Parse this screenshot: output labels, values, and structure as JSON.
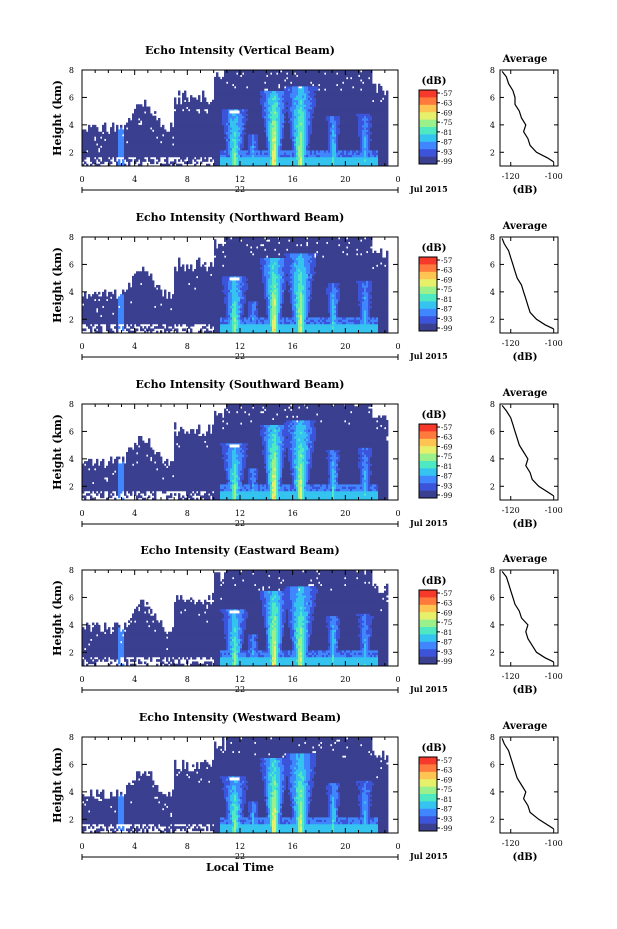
{
  "colors": {
    "colorbar": [
      "#3a3f8f",
      "#3b54d9",
      "#3f86ff",
      "#35c3ef",
      "#4ee8c2",
      "#9af08a",
      "#e6f06a",
      "#ffc451",
      "#ff7a3c",
      "#f7392c"
    ],
    "background_echo": "#3a3f8f",
    "axis": "#000000"
  },
  "chart_data": [
    {
      "type": "heatmap",
      "title": "Echo Intensity (Vertical Beam)",
      "ylabel": "Height (km)",
      "xlabel": "",
      "x_ticks": [
        "0",
        "4",
        "8",
        "12",
        "16",
        "20",
        "0"
      ],
      "xlim": [
        0,
        24
      ],
      "y_ticks": [
        "2",
        "4",
        "6",
        "8"
      ],
      "ylim": [
        1,
        8
      ],
      "date_day": "22",
      "date_label": "Jul 2015",
      "colorbar": {
        "unit": "(dB)",
        "ticks": [
          "-57",
          "-63",
          "-69",
          "-75",
          "-81",
          "-87",
          "-93",
          "-99"
        ]
      },
      "average": {
        "title": "Average",
        "xlabel": "(dB)",
        "x_ticks": [
          "-120",
          "-100"
        ],
        "xlim": [
          -125,
          -98
        ],
        "y_ticks": [
          "2",
          "4",
          "6",
          "8"
        ],
        "heights": [
          1.3,
          1.6,
          2.0,
          2.5,
          3.0,
          3.5,
          4.0,
          4.5,
          5.0,
          5.5,
          6.0,
          6.5,
          7.0,
          7.5,
          7.9
        ],
        "values": [
          -100,
          -103,
          -108,
          -111,
          -112,
          -114,
          -113,
          -115,
          -116,
          -118,
          -118,
          -119,
          -121,
          -122,
          -124
        ]
      }
    },
    {
      "type": "heatmap",
      "title": "Echo Intensity (Northward Beam)",
      "ylabel": "Height (km)",
      "xlabel": "",
      "x_ticks": [
        "0",
        "4",
        "8",
        "12",
        "16",
        "20",
        "0"
      ],
      "xlim": [
        0,
        24
      ],
      "y_ticks": [
        "2",
        "4",
        "6",
        "8"
      ],
      "ylim": [
        1,
        8
      ],
      "date_day": "22",
      "date_label": "Jul 2015",
      "colorbar": {
        "unit": "(dB)",
        "ticks": [
          "-57",
          "-63",
          "-69",
          "-75",
          "-81",
          "-87",
          "-93",
          "-99"
        ]
      },
      "average": {
        "title": "Average",
        "xlabel": "(dB)",
        "x_ticks": [
          "-120",
          "-100"
        ],
        "xlim": [
          -125,
          -98
        ],
        "y_ticks": [
          "2",
          "4",
          "6",
          "8"
        ],
        "heights": [
          1.3,
          1.6,
          2.0,
          2.5,
          3.0,
          3.5,
          4.0,
          4.5,
          5.0,
          5.5,
          6.0,
          6.5,
          7.0,
          7.5,
          7.9
        ],
        "values": [
          -100,
          -104,
          -108,
          -111,
          -112,
          -113,
          -114,
          -115,
          -117,
          -118,
          -119,
          -120,
          -121,
          -123,
          -124
        ]
      }
    },
    {
      "type": "heatmap",
      "title": "Echo Intensity (Southward Beam)",
      "ylabel": "Height (km)",
      "xlabel": "",
      "x_ticks": [
        "0",
        "4",
        "8",
        "12",
        "16",
        "20",
        "0"
      ],
      "xlim": [
        0,
        24
      ],
      "y_ticks": [
        "2",
        "4",
        "6",
        "8"
      ],
      "ylim": [
        1,
        8
      ],
      "date_day": "22",
      "date_label": "Jul 2015",
      "colorbar": {
        "unit": "(dB)",
        "ticks": [
          "-57",
          "-63",
          "-69",
          "-75",
          "-81",
          "-87",
          "-93",
          "-99"
        ]
      },
      "average": {
        "title": "Average",
        "xlabel": "(dB)",
        "x_ticks": [
          "-120",
          "-100"
        ],
        "xlim": [
          -125,
          -98
        ],
        "y_ticks": [
          "2",
          "4",
          "6",
          "8"
        ],
        "heights": [
          1.3,
          1.6,
          2.0,
          2.5,
          3.0,
          3.5,
          4.0,
          4.5,
          5.0,
          5.5,
          6.0,
          6.5,
          7.0,
          7.5,
          7.9
        ],
        "values": [
          -100,
          -103,
          -107,
          -110,
          -111,
          -113,
          -112,
          -114,
          -116,
          -117,
          -118,
          -119,
          -120,
          -122,
          -124
        ]
      }
    },
    {
      "type": "heatmap",
      "title": "Echo Intensity (Eastward Beam)",
      "ylabel": "Height (km)",
      "xlabel": "",
      "x_ticks": [
        "0",
        "4",
        "8",
        "12",
        "16",
        "20",
        "0"
      ],
      "xlim": [
        0,
        24
      ],
      "y_ticks": [
        "2",
        "4",
        "6",
        "8"
      ],
      "ylim": [
        1,
        8
      ],
      "date_day": "22",
      "date_label": "Jul 2015",
      "colorbar": {
        "unit": "(dB)",
        "ticks": [
          "-57",
          "-63",
          "-69",
          "-75",
          "-81",
          "-87",
          "-93",
          "-99"
        ]
      },
      "average": {
        "title": "Average",
        "xlabel": "(dB)",
        "x_ticks": [
          "-120",
          "-100"
        ],
        "xlim": [
          -125,
          -98
        ],
        "y_ticks": [
          "2",
          "4",
          "6",
          "8"
        ],
        "heights": [
          1.3,
          1.6,
          2.0,
          2.5,
          3.0,
          3.5,
          4.0,
          4.5,
          5.0,
          5.5,
          6.0,
          6.5,
          7.0,
          7.5,
          7.9
        ],
        "values": [
          -100,
          -104,
          -108,
          -110,
          -112,
          -113,
          -112,
          -115,
          -116,
          -118,
          -119,
          -120,
          -121,
          -122,
          -124
        ]
      }
    },
    {
      "type": "heatmap",
      "title": "Echo Intensity (Westward Beam)",
      "ylabel": "Height (km)",
      "xlabel": "Local Time",
      "x_ticks": [
        "0",
        "4",
        "8",
        "12",
        "16",
        "20",
        "0"
      ],
      "xlim": [
        0,
        24
      ],
      "y_ticks": [
        "2",
        "4",
        "6",
        "8"
      ],
      "ylim": [
        1,
        8
      ],
      "date_day": "22",
      "date_label": "Jul 2015",
      "colorbar": {
        "unit": "(dB)",
        "ticks": [
          "-57",
          "-63",
          "-69",
          "-75",
          "-81",
          "-87",
          "-93",
          "-99"
        ]
      },
      "average": {
        "title": "Average",
        "xlabel": "(dB)",
        "x_ticks": [
          "-120",
          "-100"
        ],
        "xlim": [
          -125,
          -98
        ],
        "y_ticks": [
          "2",
          "4",
          "6",
          "8"
        ],
        "heights": [
          1.3,
          1.6,
          2.0,
          2.5,
          3.0,
          3.5,
          4.0,
          4.5,
          5.0,
          5.5,
          6.0,
          6.5,
          7.0,
          7.5,
          7.9
        ],
        "values": [
          -100,
          -103,
          -107,
          -111,
          -112,
          -114,
          -113,
          -115,
          -117,
          -118,
          -119,
          -120,
          -121,
          -123,
          -124
        ]
      }
    }
  ]
}
